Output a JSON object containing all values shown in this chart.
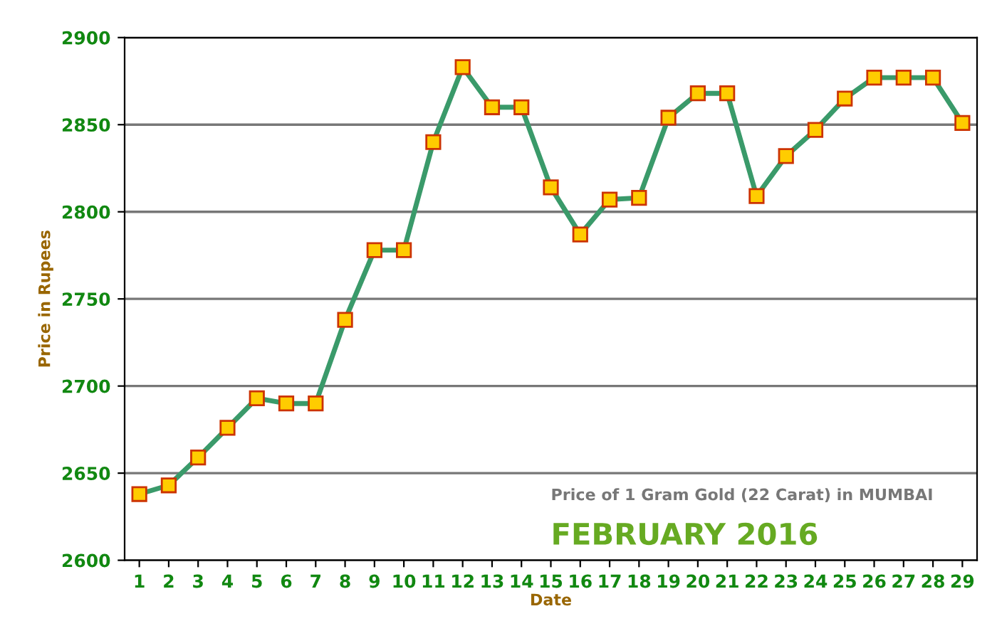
{
  "chart_data": {
    "type": "line",
    "xlabel": "Date",
    "ylabel": "Price in Rupees",
    "categories": [
      "1",
      "2",
      "3",
      "4",
      "5",
      "6",
      "7",
      "8",
      "9",
      "10",
      "11",
      "12",
      "13",
      "14",
      "15",
      "16",
      "17",
      "18",
      "19",
      "20",
      "21",
      "22",
      "23",
      "24",
      "25",
      "26",
      "27",
      "28",
      "29"
    ],
    "series": [
      {
        "color": "#3a9a6a",
        "values": [
          2638,
          2643,
          2659,
          2676,
          2693,
          2690,
          2690,
          2738,
          2778,
          2778,
          2840,
          2883,
          2860,
          2860,
          2814,
          2787,
          2807,
          2808,
          2854,
          2868,
          2868,
          2809,
          2832,
          2847,
          2865,
          2877,
          2877,
          2877,
          2851
        ]
      }
    ],
    "ylim": [
      2600,
      2900
    ],
    "yticks": [
      2600,
      2650,
      2700,
      2750,
      2800,
      2850,
      2900
    ],
    "grid": "y",
    "marker": "square",
    "line_style": "solid",
    "annotations": [
      "Price of 1 Gram Gold (22 Carat) in MUMBAI",
      "FEBRUARY 2016"
    ]
  }
}
